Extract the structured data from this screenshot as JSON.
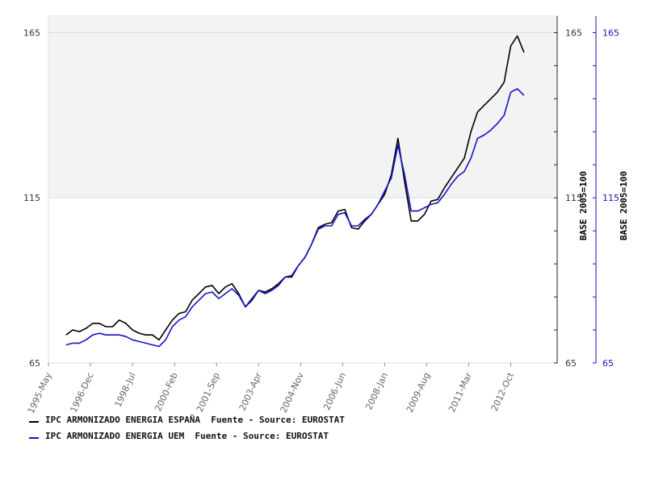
{
  "chart_data": {
    "type": "line",
    "title": "",
    "x_ticks": [
      "1995-May",
      "1996-Dec",
      "1998-Jul",
      "2000-Feb",
      "2001-Sep",
      "2003-Apr",
      "2004-Nov",
      "2006-Jun",
      "2008-Jan",
      "2009-Aug",
      "2011-Mar",
      "2012-Oct"
    ],
    "y_ticks": [
      65,
      115,
      165
    ],
    "ylim": [
      65,
      170
    ],
    "y_axis_label": "BASE 2005=100",
    "y_axis_label_right": "BASE 2005=100",
    "shaded_band": [
      115,
      170
    ],
    "colors": {
      "series1": "#000000",
      "series2": "#1414c8",
      "band": "#f3f3f3",
      "right_axis": "#1414b4"
    },
    "series": [
      {
        "name": "IPC ARMONIZADO ENERGIA ESPAÑA  Fuente - Source: EUROSTAT",
        "points": [
          [
            "1996-01",
            73.5
          ],
          [
            "1996-04",
            75
          ],
          [
            "1996-07",
            74.5
          ],
          [
            "1996-10",
            75.5
          ],
          [
            "1997-01",
            77
          ],
          [
            "1997-04",
            77
          ],
          [
            "1997-07",
            76
          ],
          [
            "1997-10",
            76
          ],
          [
            "1998-01",
            78
          ],
          [
            "1998-04",
            77
          ],
          [
            "1998-07",
            75
          ],
          [
            "1998-10",
            74
          ],
          [
            "1999-01",
            73.5
          ],
          [
            "1999-04",
            73.5
          ],
          [
            "1999-07",
            72
          ],
          [
            "1999-10",
            75
          ],
          [
            "2000-01",
            78
          ],
          [
            "2000-04",
            80
          ],
          [
            "2000-07",
            80.5
          ],
          [
            "2000-10",
            84
          ],
          [
            "2001-01",
            86
          ],
          [
            "2001-04",
            88
          ],
          [
            "2001-07",
            88.5
          ],
          [
            "2001-10",
            86
          ],
          [
            "2002-01",
            88
          ],
          [
            "2002-04",
            89
          ],
          [
            "2002-07",
            86
          ],
          [
            "2002-10",
            82
          ],
          [
            "2003-01",
            84
          ],
          [
            "2003-04",
            87
          ],
          [
            "2003-07",
            86.5
          ],
          [
            "2003-10",
            87.5
          ],
          [
            "2004-01",
            89
          ],
          [
            "2004-04",
            91
          ],
          [
            "2004-07",
            91
          ],
          [
            "2004-10",
            94.5
          ],
          [
            "2005-01",
            97
          ],
          [
            "2005-04",
            101
          ],
          [
            "2005-07",
            106
          ],
          [
            "2005-10",
            107
          ],
          [
            "2006-01",
            107.5
          ],
          [
            "2006-04",
            111
          ],
          [
            "2006-07",
            111.5
          ],
          [
            "2006-10",
            106
          ],
          [
            "2007-01",
            105.5
          ],
          [
            "2007-04",
            108
          ],
          [
            "2007-07",
            110
          ],
          [
            "2007-10",
            113
          ],
          [
            "2008-01",
            116
          ],
          [
            "2008-04",
            122
          ],
          [
            "2008-07",
            133
          ],
          [
            "2008-10",
            120
          ],
          [
            "2009-01",
            108
          ],
          [
            "2009-04",
            108
          ],
          [
            "2009-07",
            110
          ],
          [
            "2009-10",
            114
          ],
          [
            "2010-01",
            114.5
          ],
          [
            "2010-04",
            118
          ],
          [
            "2010-07",
            121
          ],
          [
            "2010-10",
            124
          ],
          [
            "2011-01",
            127
          ],
          [
            "2011-04",
            135
          ],
          [
            "2011-07",
            141
          ],
          [
            "2011-10",
            143
          ],
          [
            "2012-01",
            145
          ],
          [
            "2012-04",
            147
          ],
          [
            "2012-07",
            150
          ],
          [
            "2012-10",
            161
          ],
          [
            "2013-01",
            164
          ],
          [
            "2013-04",
            159
          ]
        ]
      },
      {
        "name": "IPC ARMONIZADO ENERGIA UEM  Fuente - Source: EUROSTAT",
        "points": [
          [
            "1996-01",
            70.5
          ],
          [
            "1996-04",
            71
          ],
          [
            "1996-07",
            71
          ],
          [
            "1996-10",
            72
          ],
          [
            "1997-01",
            73.5
          ],
          [
            "1997-04",
            74
          ],
          [
            "1997-07",
            73.5
          ],
          [
            "1997-10",
            73.5
          ],
          [
            "1998-01",
            73.5
          ],
          [
            "1998-04",
            73
          ],
          [
            "1998-07",
            72
          ],
          [
            "1998-10",
            71.5
          ],
          [
            "1999-01",
            71
          ],
          [
            "1999-04",
            70.5
          ],
          [
            "1999-07",
            70
          ],
          [
            "1999-10",
            72
          ],
          [
            "2000-01",
            76
          ],
          [
            "2000-04",
            78
          ],
          [
            "2000-07",
            79
          ],
          [
            "2000-10",
            82
          ],
          [
            "2001-01",
            84
          ],
          [
            "2001-04",
            86
          ],
          [
            "2001-07",
            86.5
          ],
          [
            "2001-10",
            84.5
          ],
          [
            "2002-01",
            86
          ],
          [
            "2002-04",
            87.5
          ],
          [
            "2002-07",
            85.5
          ],
          [
            "2002-10",
            82
          ],
          [
            "2003-01",
            84.5
          ],
          [
            "2003-04",
            87
          ],
          [
            "2003-07",
            86
          ],
          [
            "2003-10",
            87
          ],
          [
            "2004-01",
            88.5
          ],
          [
            "2004-04",
            91
          ],
          [
            "2004-07",
            91.5
          ],
          [
            "2004-10",
            94.5
          ],
          [
            "2005-01",
            97
          ],
          [
            "2005-04",
            101
          ],
          [
            "2005-07",
            105.5
          ],
          [
            "2005-10",
            106.5
          ],
          [
            "2006-01",
            106.5
          ],
          [
            "2006-04",
            110
          ],
          [
            "2006-07",
            110.5
          ],
          [
            "2006-10",
            106.5
          ],
          [
            "2007-01",
            106.5
          ],
          [
            "2007-04",
            108.5
          ],
          [
            "2007-07",
            110
          ],
          [
            "2007-10",
            113
          ],
          [
            "2008-01",
            117
          ],
          [
            "2008-04",
            121
          ],
          [
            "2008-07",
            131
          ],
          [
            "2008-10",
            122
          ],
          [
            "2009-01",
            111
          ],
          [
            "2009-04",
            111
          ],
          [
            "2009-07",
            112
          ],
          [
            "2009-10",
            113
          ],
          [
            "2010-01",
            113.5
          ],
          [
            "2010-04",
            116
          ],
          [
            "2010-07",
            119
          ],
          [
            "2010-10",
            121.5
          ],
          [
            "2011-01",
            123
          ],
          [
            "2011-04",
            127
          ],
          [
            "2011-07",
            133
          ],
          [
            "2011-10",
            134
          ],
          [
            "2012-01",
            135.5
          ],
          [
            "2012-04",
            137.5
          ],
          [
            "2012-07",
            140
          ],
          [
            "2012-10",
            147
          ],
          [
            "2013-01",
            148
          ],
          [
            "2013-04",
            146
          ]
        ]
      }
    ]
  }
}
